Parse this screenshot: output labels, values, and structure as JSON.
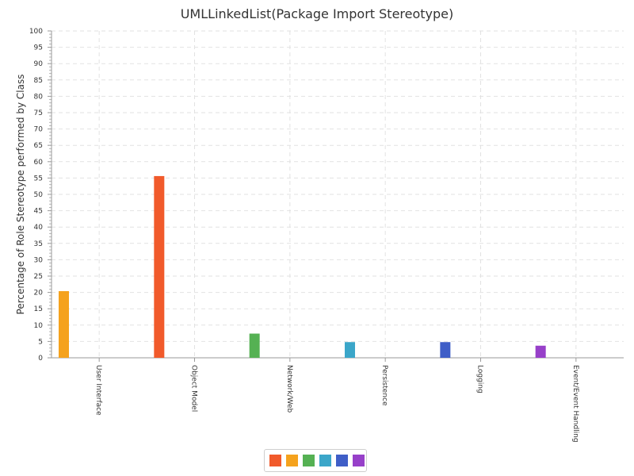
{
  "chart_data": {
    "type": "bar",
    "title": "UMLLinkedList(Package Import Stereotype)",
    "xlabel": "",
    "ylabel": "Percentage of Role Stereotype performed by Class",
    "ylim": [
      0,
      100
    ],
    "yticks": [
      0,
      5,
      10,
      15,
      20,
      25,
      30,
      35,
      40,
      45,
      50,
      55,
      60,
      65,
      70,
      75,
      80,
      85,
      90,
      95,
      100
    ],
    "grid": true,
    "legend_position": "bottom",
    "categories": [
      "User Interface",
      "Object Model",
      "Network/Web",
      "Persistence",
      "Logging",
      "Event/Event Handling"
    ],
    "series": [
      {
        "color": "#f15a2b",
        "values": [
          0,
          55.6,
          0,
          0,
          0,
          0
        ]
      },
      {
        "color": "#f5a21d",
        "values": [
          20.4,
          0,
          0,
          0,
          0,
          0
        ]
      },
      {
        "color": "#55b153",
        "values": [
          0,
          0,
          7.4,
          0,
          0,
          0
        ]
      },
      {
        "color": "#3ba6c9",
        "values": [
          0,
          0,
          0,
          4.8,
          0,
          0
        ]
      },
      {
        "color": "#3f5ec7",
        "values": [
          0,
          0,
          0,
          0,
          4.8,
          0
        ]
      },
      {
        "color": "#9740c9",
        "values": [
          0,
          0,
          0,
          0,
          0,
          3.7
        ]
      }
    ]
  }
}
